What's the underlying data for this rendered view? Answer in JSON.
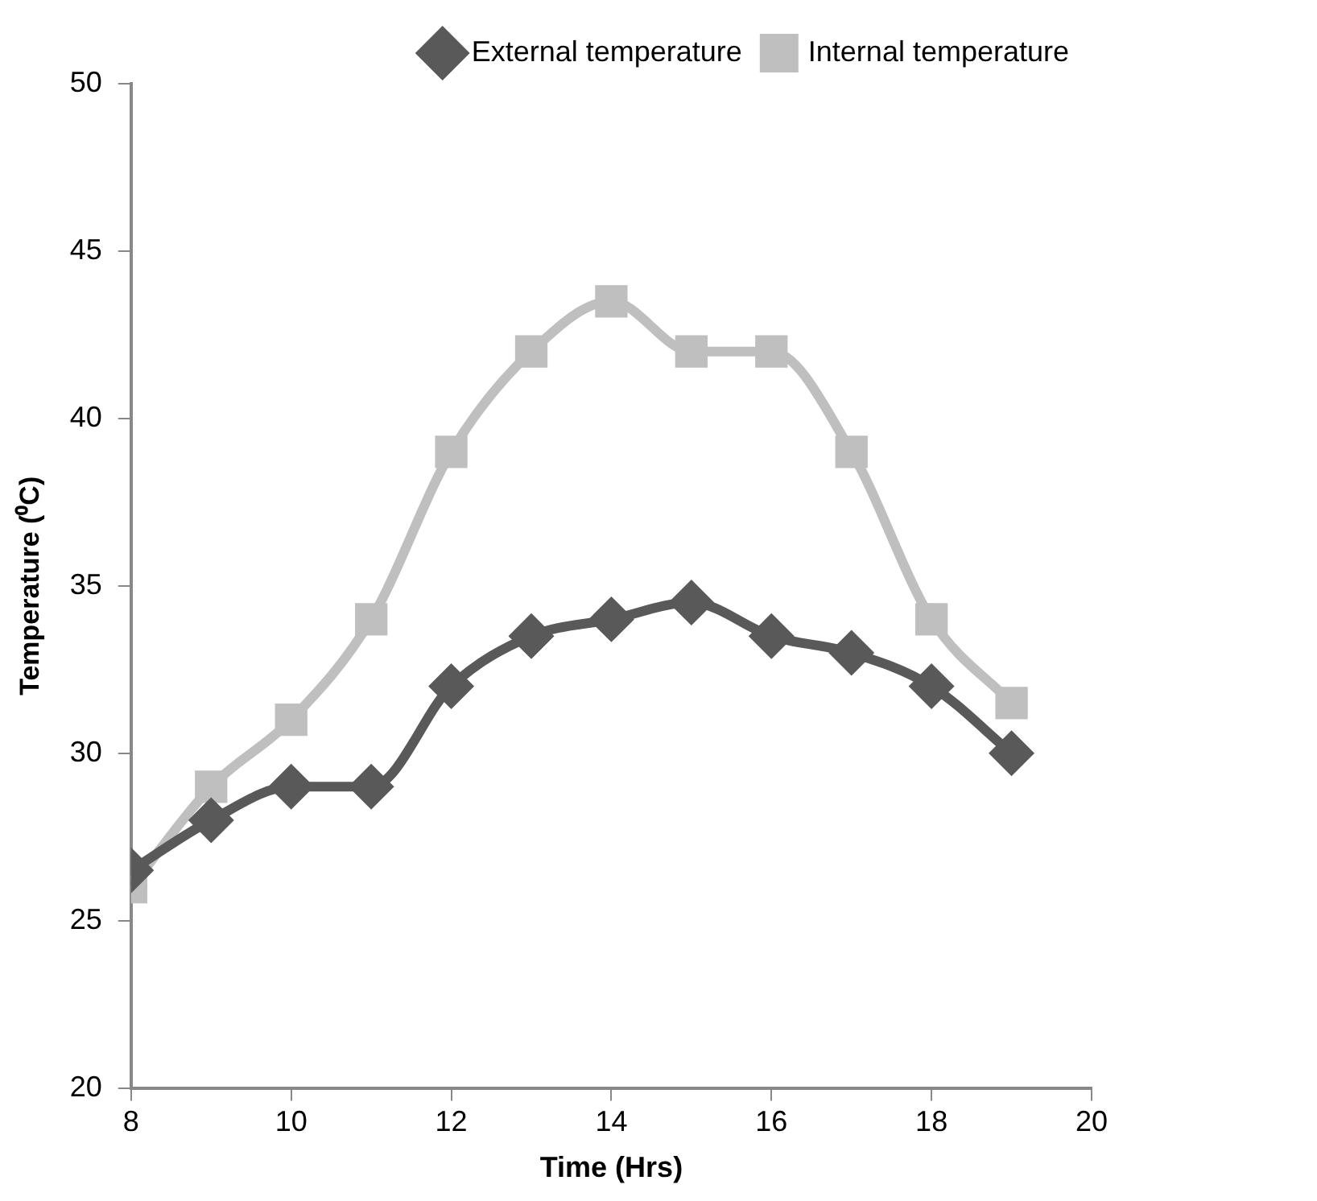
{
  "chart_data": {
    "type": "line",
    "xlabel": "Time (Hrs)",
    "ylabel": "Temperature (⁰C)",
    "x": [
      8,
      9,
      10,
      11,
      12,
      13,
      14,
      15,
      16,
      17,
      18,
      19
    ],
    "series": [
      {
        "name": "External temperature",
        "color": "#595959",
        "marker": "diamond",
        "values": [
          26.5,
          28,
          29,
          29,
          32,
          33.5,
          34,
          34.5,
          33.5,
          33,
          32,
          30
        ]
      },
      {
        "name": "Internal temperature",
        "color": "#bfbfbf",
        "marker": "square",
        "values": [
          26,
          29,
          31,
          34,
          39,
          42,
          43.5,
          42,
          42,
          39,
          34,
          31.5
        ]
      }
    ],
    "xlim": [
      8,
      20
    ],
    "xticks": [
      8,
      10,
      12,
      14,
      16,
      18,
      20
    ],
    "ylim": [
      20,
      50
    ],
    "yticks": [
      20,
      25,
      30,
      35,
      40,
      45,
      50
    ],
    "grid": false,
    "legend": "top right"
  }
}
